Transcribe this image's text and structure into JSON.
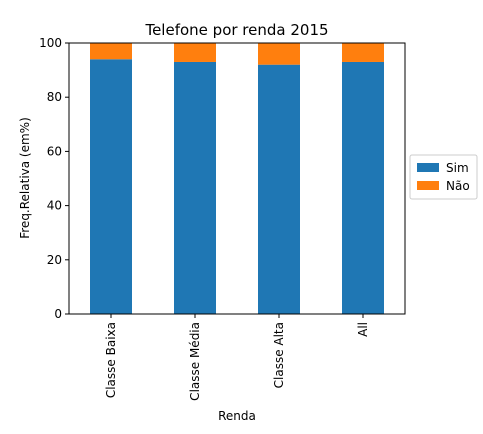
{
  "chart_data": {
    "type": "bar",
    "stacked": true,
    "title": "Telefone por renda 2015",
    "xlabel": "Renda",
    "ylabel": "Freq.Relativa (em%)",
    "ylim": [
      0,
      100
    ],
    "yticks": [
      0,
      20,
      40,
      60,
      80,
      100
    ],
    "categories": [
      "Classe Baixa",
      "Classe Média",
      "Classe Alta",
      "All"
    ],
    "series": [
      {
        "name": "Sim",
        "color": "#1f77b4",
        "values": [
          94,
          93,
          92,
          93
        ]
      },
      {
        "name": "Não",
        "color": "#ff7f0e",
        "values": [
          6,
          7,
          8,
          7
        ]
      }
    ],
    "legend_position": "right",
    "grid": false
  }
}
